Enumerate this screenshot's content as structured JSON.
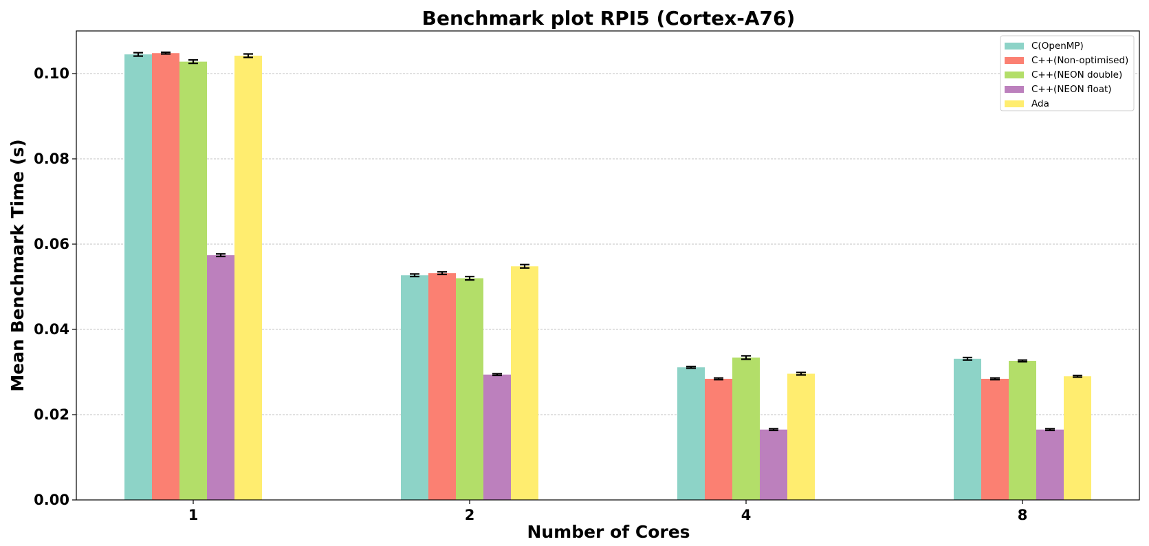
{
  "chart_data": {
    "type": "bar",
    "title": "Benchmark plot RPI5 (Cortex-A76)",
    "xlabel": "Number of Cores",
    "ylabel": "Mean Benchmark Time (s)",
    "categories": [
      "1",
      "2",
      "4",
      "8"
    ],
    "ylim": [
      0,
      0.11
    ],
    "yticks": [
      "0.00",
      "0.02",
      "0.04",
      "0.06",
      "0.08",
      "0.10"
    ],
    "ytick_values": [
      0,
      0.02,
      0.04,
      0.06,
      0.08,
      0.1
    ],
    "grid": "horizontal dashed",
    "legend_position": "top-right",
    "series": [
      {
        "name": "C(OpenMP)",
        "color": "#8dd3c7",
        "values": [
          0.1045,
          0.0527,
          0.0311,
          0.0331
        ],
        "errors": [
          0.0004,
          0.0003,
          0.0002,
          0.0003
        ]
      },
      {
        "name": "C++(Non-optimised)",
        "color": "#fb8072",
        "values": [
          0.1048,
          0.0532,
          0.0284,
          0.0284
        ],
        "errors": [
          0.0002,
          0.0003,
          0.0002,
          0.0002
        ]
      },
      {
        "name": "C++(NEON double)",
        "color": "#b3de69",
        "values": [
          0.1028,
          0.052,
          0.0334,
          0.0326
        ],
        "errors": [
          0.0004,
          0.0004,
          0.0004,
          0.0002
        ]
      },
      {
        "name": "C++(NEON float)",
        "color": "#bc80bd",
        "values": [
          0.0574,
          0.0294,
          0.0165,
          0.0165
        ],
        "errors": [
          0.0003,
          0.0002,
          0.0002,
          0.0002
        ]
      },
      {
        "name": "Ada",
        "color": "#ffed6f",
        "values": [
          0.1042,
          0.0548,
          0.0296,
          0.029
        ],
        "errors": [
          0.0004,
          0.0004,
          0.0003,
          0.0002
        ]
      }
    ]
  }
}
